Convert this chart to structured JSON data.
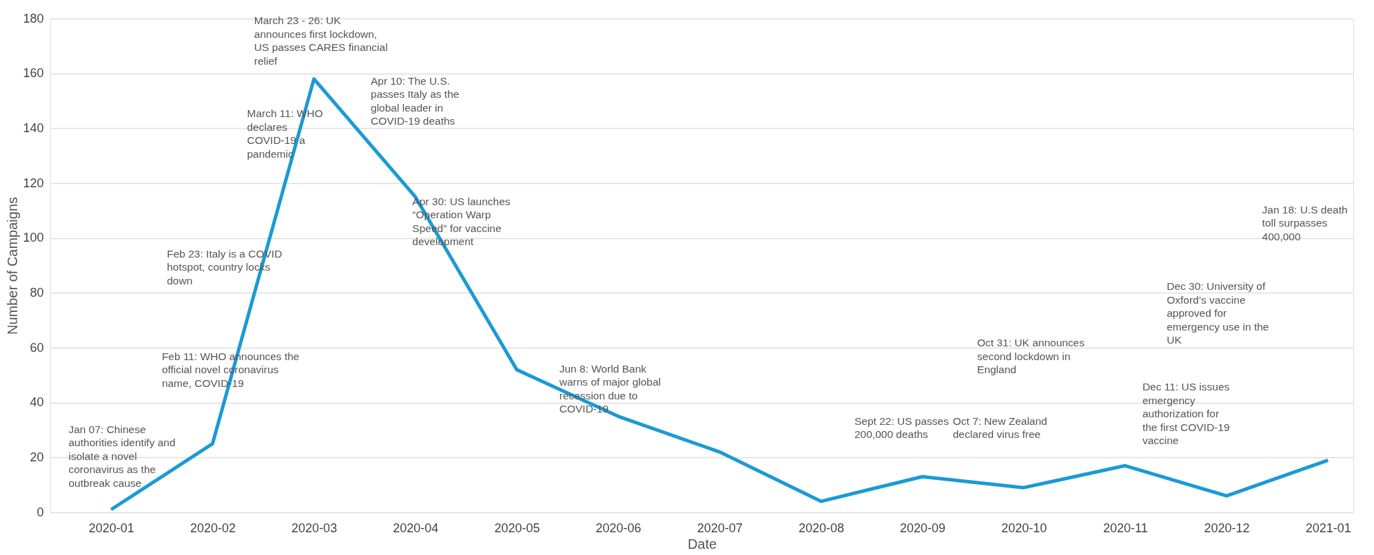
{
  "chart_data": {
    "type": "line",
    "xlabel": "Date",
    "ylabel": "Number of Campaigns",
    "categories": [
      "2020-01",
      "2020-02",
      "2020-03",
      "2020-04",
      "2020-05",
      "2020-06",
      "2020-07",
      "2020-08",
      "2020-09",
      "2020-10",
      "2020-11",
      "2020-12",
      "2021-01"
    ],
    "series": [
      {
        "color": "#1a9ad6",
        "values": [
          1,
          25,
          158,
          115,
          52,
          35,
          22,
          4,
          13,
          9,
          17,
          6,
          19
        ]
      }
    ],
    "ylim": [
      0,
      180
    ],
    "yticks": [
      0,
      20,
      40,
      60,
      80,
      100,
      120,
      140,
      160,
      180
    ],
    "grid": "y",
    "legend": false,
    "marker": "none",
    "line_style": "solid",
    "annotations": [
      "Jan 07: Chinese authorities identify and isolate a novel coronavirus as the outbreak cause",
      "Feb 11: WHO announces the official novel coronavirus name, COVID-19",
      "Feb 23: Italy is a COVID hotspot, country locks down",
      "March 11: WHO declares COVID-19 a pandemic",
      "March 23 - 26: UK announces first lockdown, US passes CARES financial relief",
      "Apr 10: The U.S. passes Italy as the global leader in COVID-19 deaths",
      "Apr 30: US launches “Operation Warp Speed” for vaccine development",
      "Jun 8: World Bank warns of major global recession due to COVID-19",
      "Sept 22: US passes 200,000 deaths",
      "Oct 7: New Zealand declared virus free",
      "Oct 31: UK announces second lockdown in England",
      "Dec 11: US issues emergency authorization for the first COVID-19 vaccine",
      "Dec 30: University of Oxford’s vaccine approved for emergency use in the UK",
      "Jan 18: U.S death toll surpasses 400,000"
    ]
  }
}
